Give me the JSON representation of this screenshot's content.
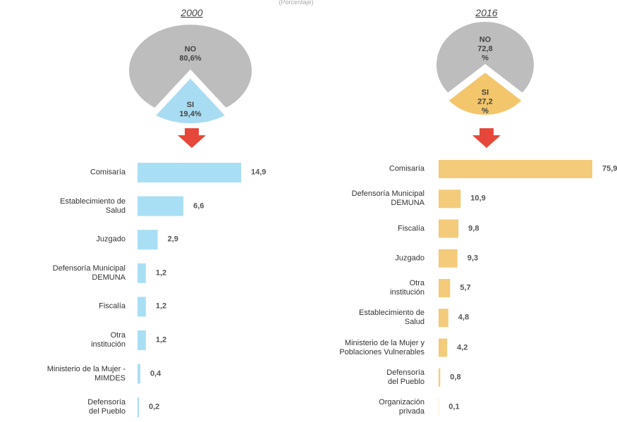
{
  "subtitle": "(Porcentaje)",
  "chart_data": [
    {
      "type": "pie",
      "title": "2000",
      "categories": [
        "NO",
        "SI"
      ],
      "values": [
        80.6,
        19.4
      ],
      "value_labels": [
        "80,6%",
        "19,4%"
      ],
      "colors": [
        "#bdbdbd",
        "#a8dcf2"
      ]
    },
    {
      "type": "pie",
      "title": "2016",
      "categories": [
        "NO",
        "SI"
      ],
      "values": [
        72.8,
        27.2
      ],
      "value_labels": [
        "72,8\n%",
        "27,2\n%"
      ],
      "colors": [
        "#bdbdbd",
        "#f3c66c"
      ]
    },
    {
      "type": "bar",
      "orientation": "horizontal",
      "color": "#a9dff5",
      "categories": [
        "Comisaría",
        "Establecimiento de\nSalud",
        "Juzgado",
        "Defensoría Municipal\nDEMUNA",
        "Fiscalía",
        "Otra\ninstitución",
        "Ministerio de la Mujer -\nMIMDES",
        "Defensoría\ndel Pueblo"
      ],
      "values": [
        14.9,
        6.6,
        2.9,
        1.2,
        1.2,
        1.2,
        0.4,
        0.2
      ],
      "value_labels": [
        "14,9",
        "6,6",
        "2,9",
        "1,2",
        "1,2",
        "1,2",
        "0,4",
        "0,2"
      ]
    },
    {
      "type": "bar",
      "orientation": "horizontal",
      "color": "#f3cb7a",
      "categories": [
        "Comisaría",
        "Defensoría Municipal\nDEMUNA",
        "Fiscalía",
        "Juzgado",
        "Otra\ninstitución",
        "Establecimiento de\nSalud",
        "Ministerio de la Mujer y\nPoblaciones Vulnerables",
        "Defensoría\ndel Pueblo",
        "Organización\nprivada"
      ],
      "values": [
        75.9,
        10.9,
        9.8,
        9.3,
        5.7,
        4.8,
        4.2,
        0.8,
        0.1
      ],
      "value_labels": [
        "75,9",
        "10,9",
        "9,8",
        "9,3",
        "5,7",
        "4,8",
        "4,2",
        "0,8",
        "0,1"
      ]
    }
  ]
}
